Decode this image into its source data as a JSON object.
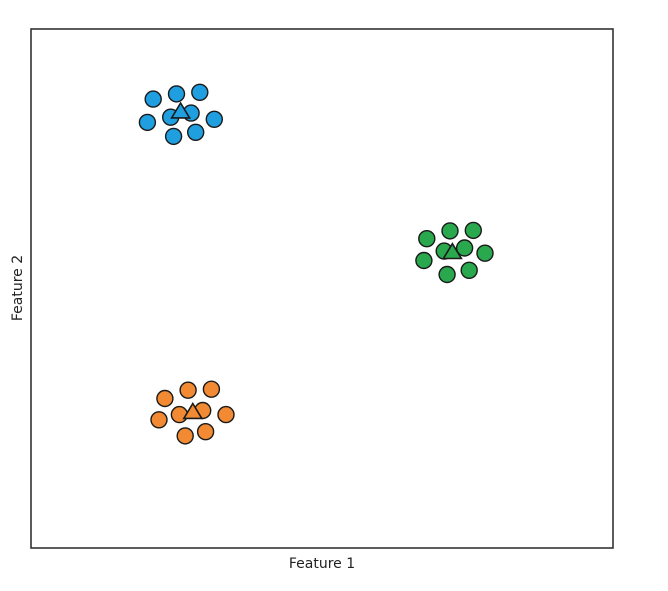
{
  "chart_data": {
    "type": "scatter",
    "title": "",
    "xlabel": "Feature 1",
    "ylabel": "Feature 2",
    "xlim": [
      0,
      10
    ],
    "ylim": [
      0,
      10
    ],
    "grid": false,
    "ticks": false,
    "legend": "none",
    "series": [
      {
        "color": "#1f9ee0",
        "marker": "circle",
        "points": [
          [
            2.1,
            8.65
          ],
          [
            2.5,
            8.75
          ],
          [
            2.9,
            8.78
          ],
          [
            2.0,
            8.2
          ],
          [
            2.4,
            8.3
          ],
          [
            2.75,
            8.38
          ],
          [
            3.15,
            8.26
          ],
          [
            2.45,
            7.93
          ],
          [
            2.83,
            8.01
          ]
        ],
        "center": [
          2.57,
          8.4
        ]
      },
      {
        "color": "#2aa84e",
        "marker": "circle",
        "points": [
          [
            6.8,
            5.96
          ],
          [
            7.2,
            6.11
          ],
          [
            7.6,
            6.12
          ],
          [
            6.75,
            5.54
          ],
          [
            7.1,
            5.72
          ],
          [
            7.45,
            5.78
          ],
          [
            7.8,
            5.68
          ],
          [
            7.15,
            5.27
          ],
          [
            7.53,
            5.35
          ]
        ],
        "center": [
          7.24,
          5.69
        ]
      },
      {
        "color": "#f18a33",
        "marker": "circle",
        "points": [
          [
            2.3,
            2.88
          ],
          [
            2.7,
            3.04
          ],
          [
            3.1,
            3.06
          ],
          [
            2.2,
            2.47
          ],
          [
            2.55,
            2.57
          ],
          [
            2.95,
            2.65
          ],
          [
            3.35,
            2.57
          ],
          [
            2.65,
            2.16
          ],
          [
            3.0,
            2.24
          ]
        ],
        "center": [
          2.78,
          2.61
        ]
      }
    ]
  }
}
